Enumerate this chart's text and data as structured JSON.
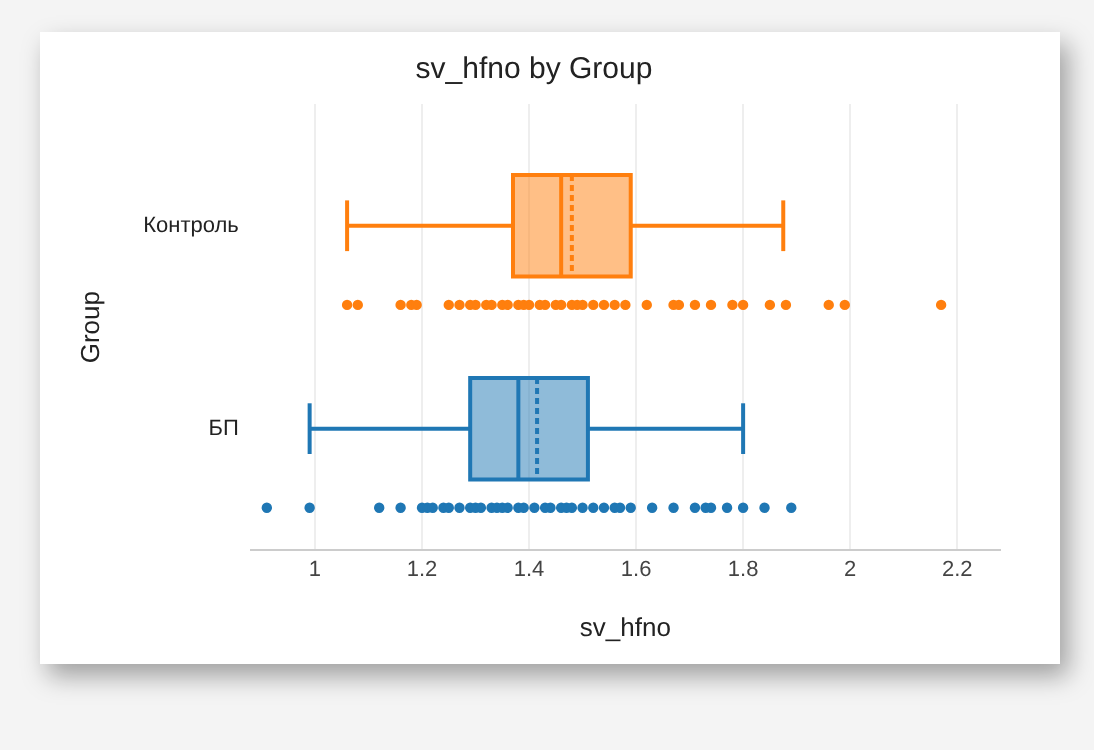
{
  "chart_data": {
    "type": "box",
    "orientation": "horizontal",
    "title": "sv_hfno by Group",
    "xlabel": "sv_hfno",
    "ylabel": "Group",
    "categories": [
      "Контроль",
      "БП"
    ],
    "xlim": [
      0.88,
      2.28
    ],
    "xticks": [
      1,
      1.2,
      1.4,
      1.6,
      1.8,
      2,
      2.2
    ],
    "grid": "x",
    "legend": false,
    "colors": [
      "#ff7f0e",
      "#1f77b4"
    ],
    "boxes": [
      {
        "low": 1.06,
        "q1": 1.37,
        "median": 1.46,
        "q3": 1.59,
        "high": 1.875,
        "mean": 1.48
      },
      {
        "low": 0.99,
        "q1": 1.29,
        "median": 1.38,
        "q3": 1.51,
        "high": 1.8,
        "mean": 1.415
      }
    ],
    "series": [
      {
        "type": "scatter",
        "color": "#ff7f0e",
        "x": [
          "Контроль",
          "Контроль",
          "Контроль",
          "Контроль",
          "Контроль",
          "Контроль",
          "Контроль",
          "Контроль",
          "Контроль",
          "Контроль",
          "Контроль",
          "Контроль",
          "Контроль",
          "Контроль",
          "Контроль",
          "Контроль",
          "Контроль",
          "Контроль",
          "Контроль",
          "Контроль",
          "Контроль",
          "Контроль",
          "Контроль",
          "Контроль",
          "Контроль",
          "Контроль",
          "Контроль",
          "Контроль",
          "Контроль",
          "Контроль",
          "Контроль",
          "Контроль",
          "Контроль",
          "Контроль",
          "Контроль",
          "Контроль",
          "Контроль",
          "Контроль",
          "Контроль"
        ],
        "values": [
          1.06,
          1.08,
          1.16,
          1.18,
          1.19,
          1.25,
          1.27,
          1.29,
          1.3,
          1.32,
          1.33,
          1.35,
          1.36,
          1.38,
          1.39,
          1.4,
          1.42,
          1.43,
          1.45,
          1.46,
          1.48,
          1.49,
          1.5,
          1.52,
          1.54,
          1.56,
          1.58,
          1.62,
          1.67,
          1.68,
          1.71,
          1.74,
          1.78,
          1.8,
          1.85,
          1.88,
          1.96,
          1.99,
          2.17
        ]
      },
      {
        "type": "scatter",
        "color": "#1f77b4",
        "x": [
          "БП",
          "БП",
          "БП",
          "БП",
          "БП",
          "БП",
          "БП",
          "БП",
          "БП",
          "БП",
          "БП",
          "БП",
          "БП",
          "БП",
          "БП",
          "БП",
          "БП",
          "БП",
          "БП",
          "БП",
          "БП",
          "БП",
          "БП",
          "БП",
          "БП",
          "БП",
          "БП",
          "БП",
          "БП",
          "БП",
          "БП",
          "БП",
          "БП",
          "БП",
          "БП",
          "БП",
          "БП",
          "БП",
          "БП",
          "БП"
        ],
        "values": [
          0.91,
          0.99,
          1.12,
          1.16,
          1.2,
          1.21,
          1.22,
          1.24,
          1.25,
          1.27,
          1.29,
          1.3,
          1.31,
          1.33,
          1.34,
          1.35,
          1.36,
          1.38,
          1.39,
          1.41,
          1.43,
          1.44,
          1.46,
          1.47,
          1.48,
          1.5,
          1.52,
          1.54,
          1.56,
          1.57,
          1.59,
          1.63,
          1.67,
          1.71,
          1.73,
          1.74,
          1.77,
          1.8,
          1.84,
          1.89
        ]
      }
    ]
  }
}
